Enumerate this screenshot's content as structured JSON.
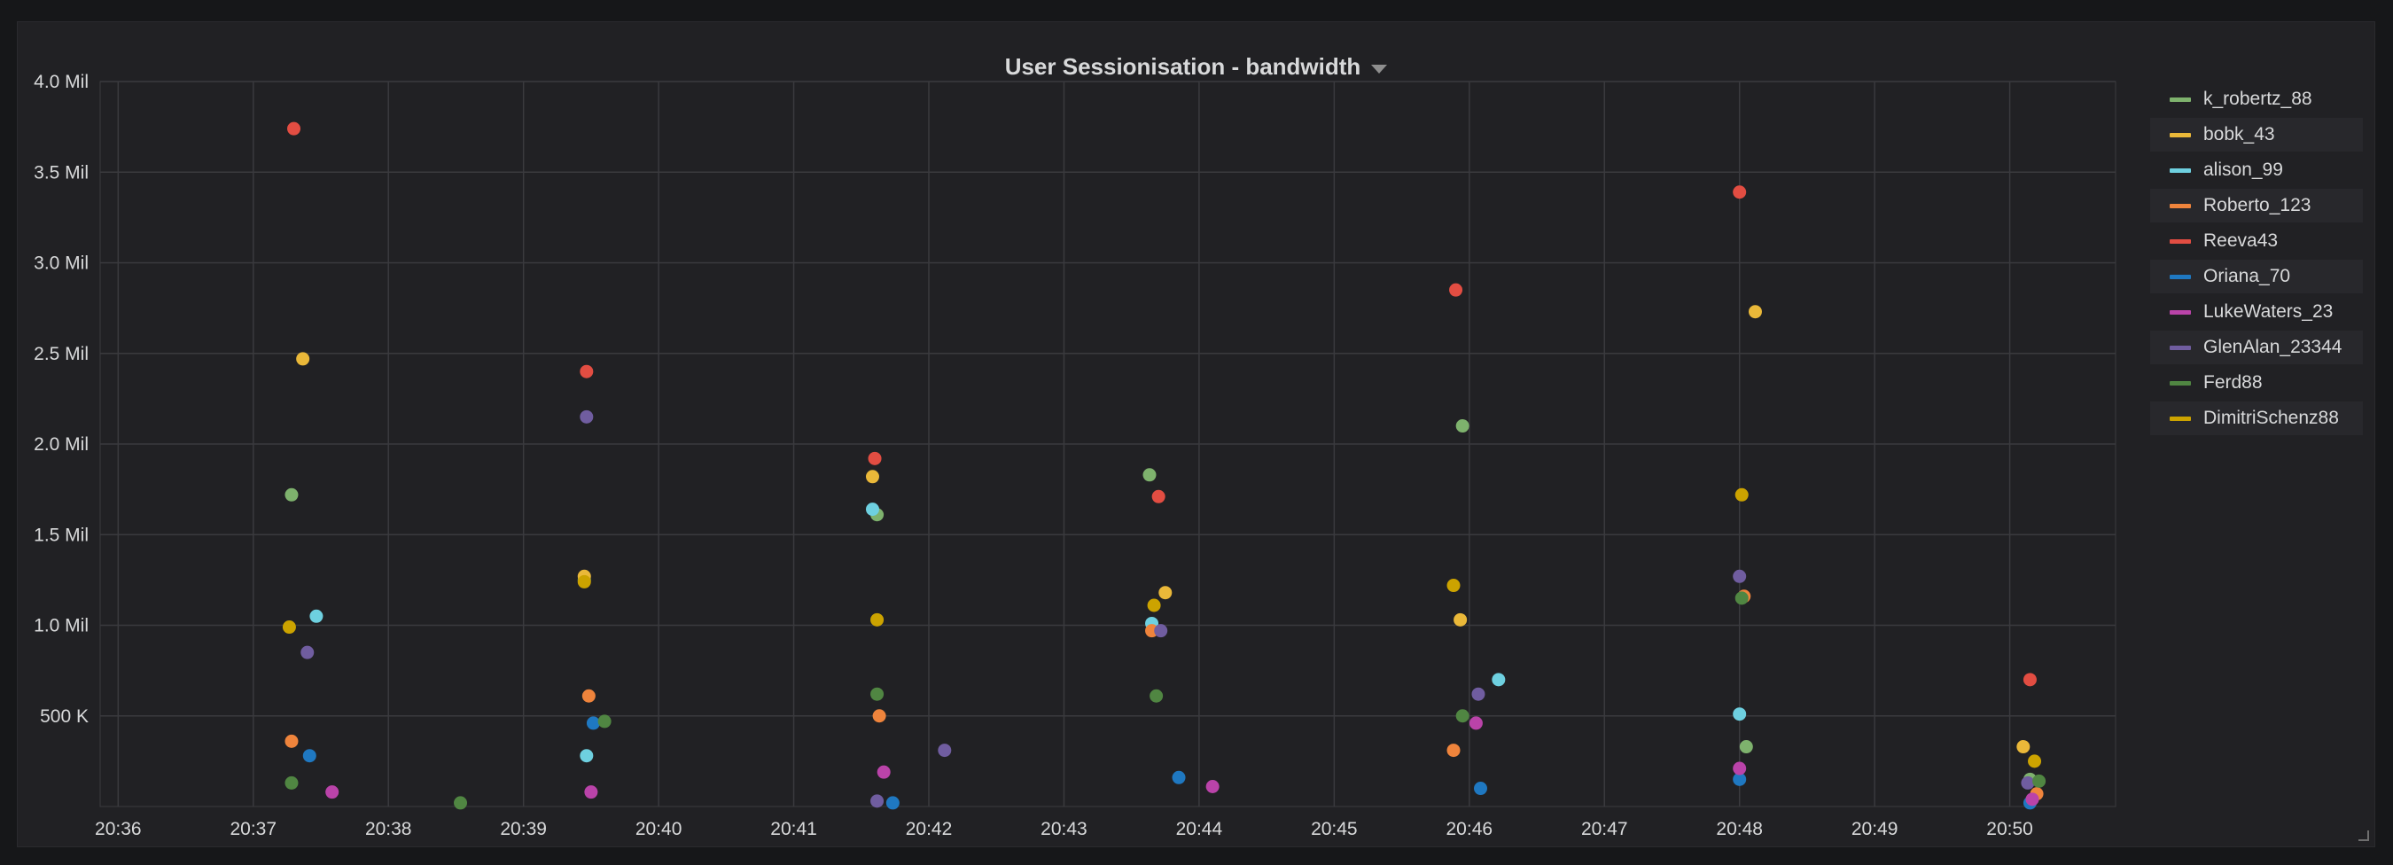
{
  "panel": {
    "title": "User Sessionisation - bandwidth"
  },
  "chart_data": {
    "type": "scatter",
    "title": "User Sessionisation - bandwidth",
    "xlabel": "",
    "ylabel": "",
    "x_ticks": [
      "20:36",
      "20:37",
      "20:38",
      "20:39",
      "20:40",
      "20:41",
      "20:42",
      "20:43",
      "20:44",
      "20:45",
      "20:46",
      "20:47",
      "20:48",
      "20:49",
      "20:50"
    ],
    "xlim": [
      "20:35:52",
      "20:50:47"
    ],
    "y_ticks": [
      {
        "value": 500000,
        "label": "500 K"
      },
      {
        "value": 1000000,
        "label": "1.0 Mil"
      },
      {
        "value": 1500000,
        "label": "1.5 Mil"
      },
      {
        "value": 2000000,
        "label": "2.0 Mil"
      },
      {
        "value": 2500000,
        "label": "2.5 Mil"
      },
      {
        "value": 3000000,
        "label": "3.0 Mil"
      },
      {
        "value": 3500000,
        "label": "3.5 Mil"
      },
      {
        "value": 4000000,
        "label": "4.0 Mil"
      }
    ],
    "ylim": [
      0,
      4000000
    ],
    "grid": true,
    "legend_position": "right",
    "series": [
      {
        "name": "k_robertz_88",
        "color": "#7eb26d",
        "points": [
          [
            "20:37:17",
            1720000
          ],
          [
            "20:39:27",
            1250000
          ],
          [
            "20:41:37",
            1610000
          ],
          [
            "20:43:38",
            1830000
          ],
          [
            "20:45:57",
            2100000
          ],
          [
            "20:48:03",
            330000
          ],
          [
            "20:50:09",
            150000
          ]
        ]
      },
      {
        "name": "bobk_43",
        "color": "#eab839",
        "points": [
          [
            "20:37:22",
            2470000
          ],
          [
            "20:39:27",
            1270000
          ],
          [
            "20:41:35",
            1820000
          ],
          [
            "20:43:45",
            1180000
          ],
          [
            "20:45:56",
            1030000
          ],
          [
            "20:48:07",
            2730000
          ],
          [
            "20:50:06",
            330000
          ]
        ]
      },
      {
        "name": "alison_99",
        "color": "#6ed0e0",
        "points": [
          [
            "20:37:28",
            1050000
          ],
          [
            "20:39:28",
            280000
          ],
          [
            "20:41:35",
            1640000
          ],
          [
            "20:43:39",
            1010000
          ],
          [
            "20:46:13",
            700000
          ],
          [
            "20:48:00",
            510000
          ]
        ]
      },
      {
        "name": "Roberto_123",
        "color": "#ef843c",
        "points": [
          [
            "20:37:17",
            360000
          ],
          [
            "20:39:29",
            610000
          ],
          [
            "20:41:38",
            500000
          ],
          [
            "20:43:39",
            970000
          ],
          [
            "20:45:53",
            310000
          ],
          [
            "20:48:02",
            1160000
          ],
          [
            "20:50:12",
            70000
          ]
        ]
      },
      {
        "name": "Reeva43",
        "color": "#e24d42",
        "points": [
          [
            "20:37:18",
            3740000
          ],
          [
            "20:39:28",
            2400000
          ],
          [
            "20:41:36",
            1920000
          ],
          [
            "20:43:42",
            1710000
          ],
          [
            "20:45:54",
            2850000
          ],
          [
            "20:48:00",
            3390000
          ],
          [
            "20:50:09",
            700000
          ]
        ]
      },
      {
        "name": "Oriana_70",
        "color": "#1f78c1",
        "points": [
          [
            "20:37:25",
            280000
          ],
          [
            "20:39:31",
            460000
          ],
          [
            "20:41:44",
            20000
          ],
          [
            "20:43:51",
            160000
          ],
          [
            "20:46:05",
            100000
          ],
          [
            "20:48:00",
            150000
          ],
          [
            "20:50:09",
            20000
          ]
        ]
      },
      {
        "name": "LukeWaters_23",
        "color": "#ba43a9",
        "points": [
          [
            "20:37:35",
            80000
          ],
          [
            "20:39:30",
            80000
          ],
          [
            "20:41:40",
            190000
          ],
          [
            "20:44:06",
            110000
          ],
          [
            "20:46:03",
            460000
          ],
          [
            "20:48:00",
            210000
          ],
          [
            "20:50:10",
            40000
          ]
        ]
      },
      {
        "name": "GlenAlan_23344",
        "color": "#705da0",
        "points": [
          [
            "20:37:24",
            850000
          ],
          [
            "20:39:28",
            2150000
          ],
          [
            "20:41:37",
            30000
          ],
          [
            "20:42:07",
            310000
          ],
          [
            "20:43:43",
            970000
          ],
          [
            "20:46:04",
            620000
          ],
          [
            "20:48:00",
            1270000
          ],
          [
            "20:50:08",
            130000
          ]
        ]
      },
      {
        "name": "Ferd88",
        "color": "#508642",
        "points": [
          [
            "20:37:17",
            130000
          ],
          [
            "20:38:32",
            20000
          ],
          [
            "20:39:36",
            470000
          ],
          [
            "20:41:37",
            620000
          ],
          [
            "20:43:41",
            610000
          ],
          [
            "20:45:57",
            500000
          ],
          [
            "20:48:01",
            1150000
          ],
          [
            "20:50:13",
            140000
          ]
        ]
      },
      {
        "name": "DimitriSchenz88",
        "color": "#cca300",
        "points": [
          [
            "20:37:16",
            990000
          ],
          [
            "20:39:27",
            1240000
          ],
          [
            "20:41:37",
            1030000
          ],
          [
            "20:43:40",
            1110000
          ],
          [
            "20:45:53",
            1220000
          ],
          [
            "20:48:01",
            1720000
          ],
          [
            "20:50:11",
            250000
          ]
        ]
      }
    ]
  }
}
